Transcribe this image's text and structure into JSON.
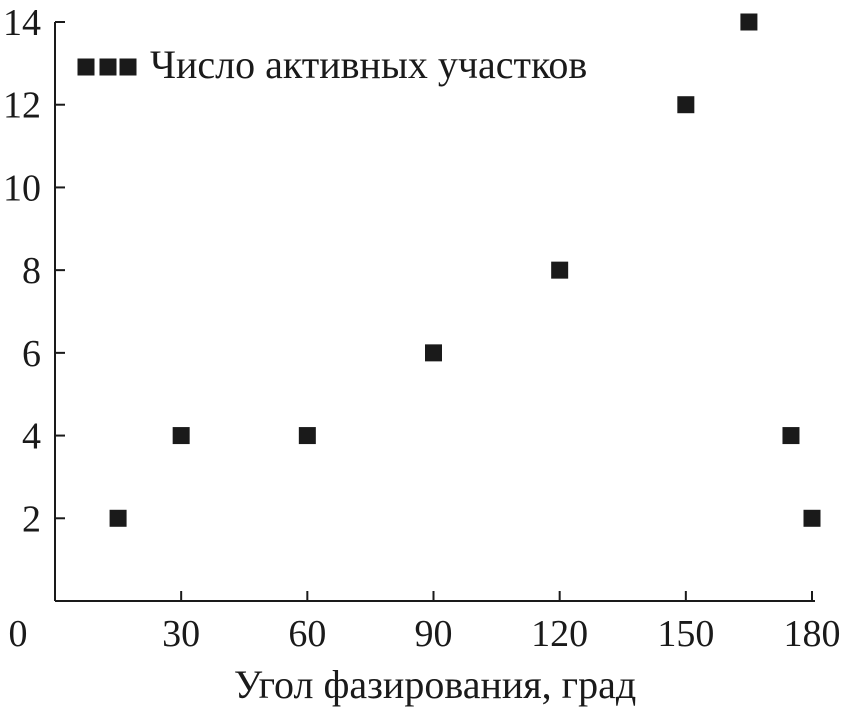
{
  "chart_data": {
    "type": "scatter",
    "title": "",
    "xlabel": "Угол фазирования, град",
    "ylabel": "",
    "xlim": [
      0,
      180
    ],
    "ylim": [
      0,
      14
    ],
    "x_ticks": [
      0,
      30,
      60,
      90,
      120,
      150,
      180
    ],
    "y_ticks": [
      2,
      4,
      6,
      8,
      10,
      12,
      14
    ],
    "grid": false,
    "legend_position": "top-left",
    "marker": "square",
    "marker_color": "#1a1a1a",
    "series": [
      {
        "name": "Число активных участков",
        "points": [
          {
            "x": 15,
            "y": 2
          },
          {
            "x": 30,
            "y": 4
          },
          {
            "x": 60,
            "y": 4
          },
          {
            "x": 90,
            "y": 6
          },
          {
            "x": 120,
            "y": 8
          },
          {
            "x": 150,
            "y": 12
          },
          {
            "x": 165,
            "y": 14
          },
          {
            "x": 175,
            "y": 4
          },
          {
            "x": 180,
            "y": 2
          }
        ]
      }
    ]
  }
}
